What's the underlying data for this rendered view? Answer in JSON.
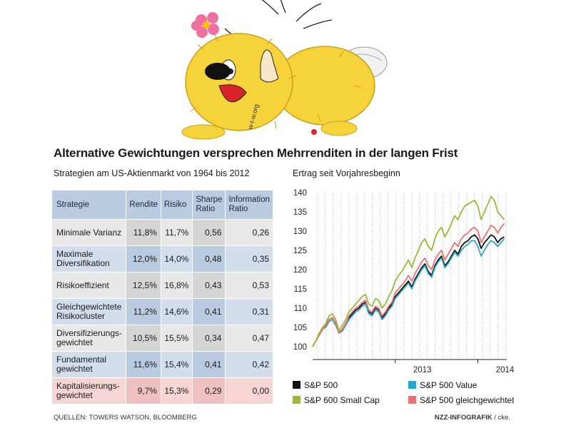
{
  "title": "Alternative Gewichtungen versprechen Mehrrenditen in der langen Frist",
  "subtitle_left": "Strategien am US-Aktienmarkt von 1964 bis 2012",
  "subtitle_right": "Ertrag seit Vorjahresbeginn",
  "logo_text": "w-t-w.org",
  "footer_source": "QUELLEN: TOWERS WATSON, BLOOMBERG",
  "footer_credit_bold": "NZZ-INFOGRAFIK",
  "footer_credit_rest": " / cke.",
  "colors": {
    "sp500": "#111111",
    "sp500_value": "#2aa6c8",
    "sp600_small": "#9ab83a",
    "sp500_equal": "#ef7070",
    "header_blue": "#b9cbe0",
    "band_gray": "#e8e8e8",
    "band_blue": "#d2deec",
    "band_pink": "#f7d5d5"
  },
  "table": {
    "headers": [
      "Strategie",
      "Rendite",
      "Risiko",
      "Sharpe Ratio",
      "Information Ratio"
    ],
    "rows": [
      {
        "name": "Minimale Varianz",
        "rendite": "11,8%",
        "risiko": "11,7%",
        "sharpe": "0,56",
        "info": "0,26"
      },
      {
        "name": "Maximale Diversifikation",
        "rendite": "12,0%",
        "risiko": "14,0%",
        "sharpe": "0,48",
        "info": "0,35"
      },
      {
        "name": "Risikoeffizient",
        "rendite": "12,5%",
        "risiko": "16,8%",
        "sharpe": "0,43",
        "info": "0,53"
      },
      {
        "name": "Gleichgewichtete Risikocluster",
        "rendite": "11,2%",
        "risiko": "14,6%",
        "sharpe": "0,41",
        "info": "0,31"
      },
      {
        "name": "Diversifizierungs-gewichtet",
        "rendite": "10,5%",
        "risiko": "15,5%",
        "sharpe": "0,34",
        "info": "0,47"
      },
      {
        "name": "Fundamental gewichtet",
        "rendite": "11,6%",
        "risiko": "15,4%",
        "sharpe": "0,41",
        "info": "0,42"
      },
      {
        "name": "Kapitalisierungs-gewichtet",
        "rendite": "9,7%",
        "risiko": "15,3%",
        "sharpe": "0,29",
        "info": "0,00"
      }
    ]
  },
  "chart_data": [
    {
      "type": "table",
      "title": "Strategien am US-Aktienmarkt von 1964 bis 2012",
      "columns": [
        "Strategie",
        "Rendite",
        "Risiko",
        "Sharpe Ratio",
        "Information Ratio"
      ],
      "rows": [
        [
          "Minimale Varianz",
          "11,8%",
          "11,7%",
          "0,56",
          "0,26"
        ],
        [
          "Maximale Diversifikation",
          "12,0%",
          "14,0%",
          "0,48",
          "0,35"
        ],
        [
          "Risikoeffizient",
          "12,5%",
          "16,8%",
          "0,43",
          "0,53"
        ],
        [
          "Gleichgewichtete Risikocluster",
          "11,2%",
          "14,6%",
          "0,41",
          "0,31"
        ],
        [
          "Diversifizierungs-gewichtet",
          "10,5%",
          "15,5%",
          "0,34",
          "0,47"
        ],
        [
          "Fundamental gewichtet",
          "11,6%",
          "15,4%",
          "0,41",
          "0,42"
        ],
        [
          "Kapitalisierungs-gewichtet",
          "9,7%",
          "15,3%",
          "0,29",
          "0,00"
        ]
      ]
    },
    {
      "type": "line",
      "title": "Ertrag seit Vorjahresbeginn",
      "xlabel": "",
      "ylabel": "",
      "ylim": [
        97,
        140
      ],
      "yticks": [
        100,
        105,
        110,
        115,
        120,
        125,
        130,
        135,
        140
      ],
      "xlim": [
        2012.0,
        2014.35
      ],
      "xticks": [
        {
          "value": 2013.0,
          "label": "2013"
        },
        {
          "value": 2014.0,
          "label": "2014"
        }
      ],
      "grid": "vertical dotted",
      "legend_position": "bottom",
      "x": [
        2012.0,
        2012.04,
        2012.08,
        2012.12,
        2012.16,
        2012.2,
        2012.24,
        2012.28,
        2012.32,
        2012.36,
        2012.4,
        2012.44,
        2012.48,
        2012.52,
        2012.56,
        2012.6,
        2012.64,
        2012.68,
        2012.72,
        2012.76,
        2012.8,
        2012.84,
        2012.88,
        2012.92,
        2012.96,
        2013.0,
        2013.04,
        2013.08,
        2013.12,
        2013.16,
        2013.2,
        2013.24,
        2013.28,
        2013.32,
        2013.36,
        2013.4,
        2013.44,
        2013.48,
        2013.52,
        2013.56,
        2013.6,
        2013.64,
        2013.68,
        2013.72,
        2013.76,
        2013.8,
        2013.84,
        2013.88,
        2013.92,
        2013.96,
        2014.0,
        2014.04,
        2014.08,
        2014.12,
        2014.16,
        2014.2,
        2014.24,
        2014.28,
        2014.32
      ],
      "series": [
        {
          "name": "S&P 500",
          "color": "#111111",
          "values": [
            100,
            101.5,
            103,
            104.5,
            105.5,
            107,
            107.5,
            106,
            103.5,
            104.5,
            106,
            107.5,
            108.5,
            109.5,
            110,
            111,
            111.5,
            109,
            108.5,
            110,
            109.5,
            107.5,
            108.5,
            110,
            111,
            113,
            114,
            115,
            116,
            117,
            115.5,
            117.5,
            119,
            120.5,
            121.5,
            119.5,
            118.5,
            121,
            122.5,
            123.5,
            121,
            122,
            123.5,
            125,
            124,
            126,
            127,
            127.5,
            128.5,
            129,
            128,
            125.5,
            127,
            128,
            129,
            128.5,
            127,
            128,
            128.5
          ]
        },
        {
          "name": "S&P 500 Value",
          "color": "#2aa6c8",
          "values": [
            100,
            101.5,
            103,
            104.5,
            105,
            106.5,
            107,
            105.5,
            103.5,
            104,
            105.5,
            107,
            108,
            109,
            109.5,
            110.5,
            111,
            108.5,
            108,
            109.5,
            109,
            107,
            108,
            109.5,
            110.5,
            112.5,
            113.5,
            114.5,
            115.5,
            116.5,
            115,
            117,
            118.5,
            120,
            121,
            119,
            118,
            120.5,
            122,
            123,
            120.5,
            121.5,
            123,
            124.5,
            123.5,
            125,
            126,
            126.5,
            127.5,
            127.5,
            126,
            123.5,
            125,
            126.5,
            127.5,
            127,
            126,
            127,
            128
          ]
        },
        {
          "name": "S&P 600 Small Cap",
          "color": "#9ab83a",
          "values": [
            100,
            101.5,
            103.5,
            105,
            106,
            108,
            108.5,
            107,
            104,
            105.5,
            107,
            109,
            110,
            111,
            112,
            113,
            113.5,
            111,
            110.5,
            112.5,
            112,
            110,
            111,
            113,
            114.5,
            117,
            118.5,
            119.5,
            121,
            122.5,
            120.5,
            123,
            125,
            127,
            128,
            126,
            125,
            128,
            130,
            131,
            128.5,
            130,
            132,
            134,
            133,
            135,
            136.5,
            137,
            137.5,
            138,
            136.5,
            133,
            135,
            137,
            139,
            138,
            135,
            134,
            133
          ]
        },
        {
          "name": "S&P 500 gleichgewichtet",
          "color": "#ef7070",
          "values": [
            100,
            101.5,
            103,
            104.5,
            105.5,
            107,
            107.5,
            106,
            103.5,
            104.5,
            106,
            108,
            109,
            110,
            110.5,
            111.5,
            112,
            109.5,
            109,
            110.5,
            110,
            108,
            109,
            110.5,
            111.5,
            114,
            115,
            116,
            117,
            118.5,
            117,
            119,
            120.5,
            122,
            123,
            121,
            120,
            122.5,
            124,
            125,
            122.5,
            124,
            125.5,
            127,
            126,
            128,
            129,
            129.5,
            130.5,
            131,
            130,
            127,
            128.5,
            130,
            131.5,
            131,
            129.5,
            131,
            132
          ]
        }
      ]
    }
  ],
  "legend": [
    {
      "label": "S&P 500",
      "color": "#111111"
    },
    {
      "label": "S&P 500 Value",
      "color": "#2aa6c8"
    },
    {
      "label": "S&P 600 Small Cap",
      "color": "#9ab83a"
    },
    {
      "label": "S&P 500 gleichgewichtet",
      "color": "#ef7070"
    }
  ]
}
